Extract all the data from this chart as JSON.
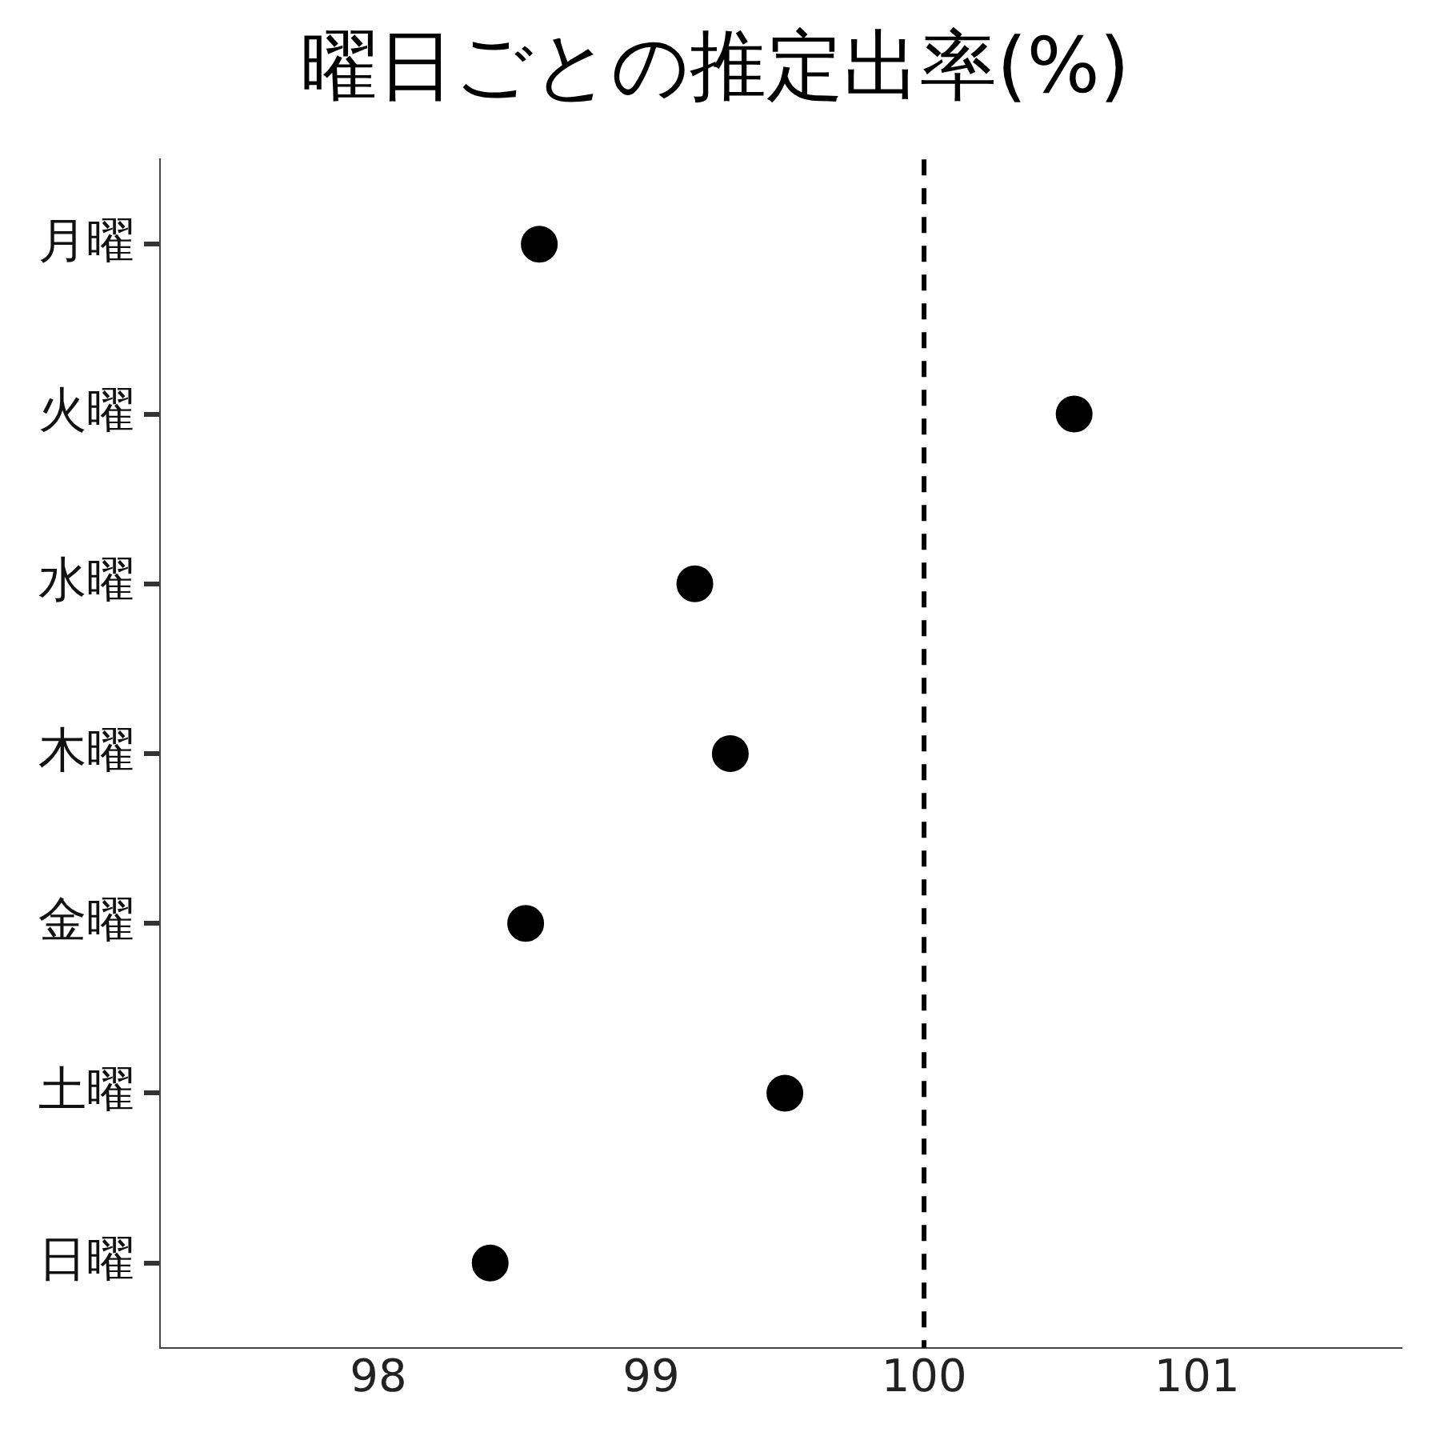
{
  "chart_data": {
    "type": "scatter",
    "orientation": "horizontal",
    "title": "曜日ごとの推定出率(%)",
    "categories": [
      "月曜",
      "火曜",
      "水曜",
      "木曜",
      "金曜",
      "土曜",
      "日曜"
    ],
    "values": [
      98.59,
      100.55,
      99.16,
      99.29,
      98.54,
      99.49,
      98.41
    ],
    "color": "#000000",
    "marker": "circle",
    "xlim": [
      97.2,
      101.75
    ],
    "xticks": [
      98,
      99,
      100,
      101
    ],
    "ref_lines": [
      {
        "axis": "x",
        "value": 100,
        "color": "#000000",
        "line_style": "dashed"
      }
    ],
    "grid": false,
    "legend": false
  }
}
